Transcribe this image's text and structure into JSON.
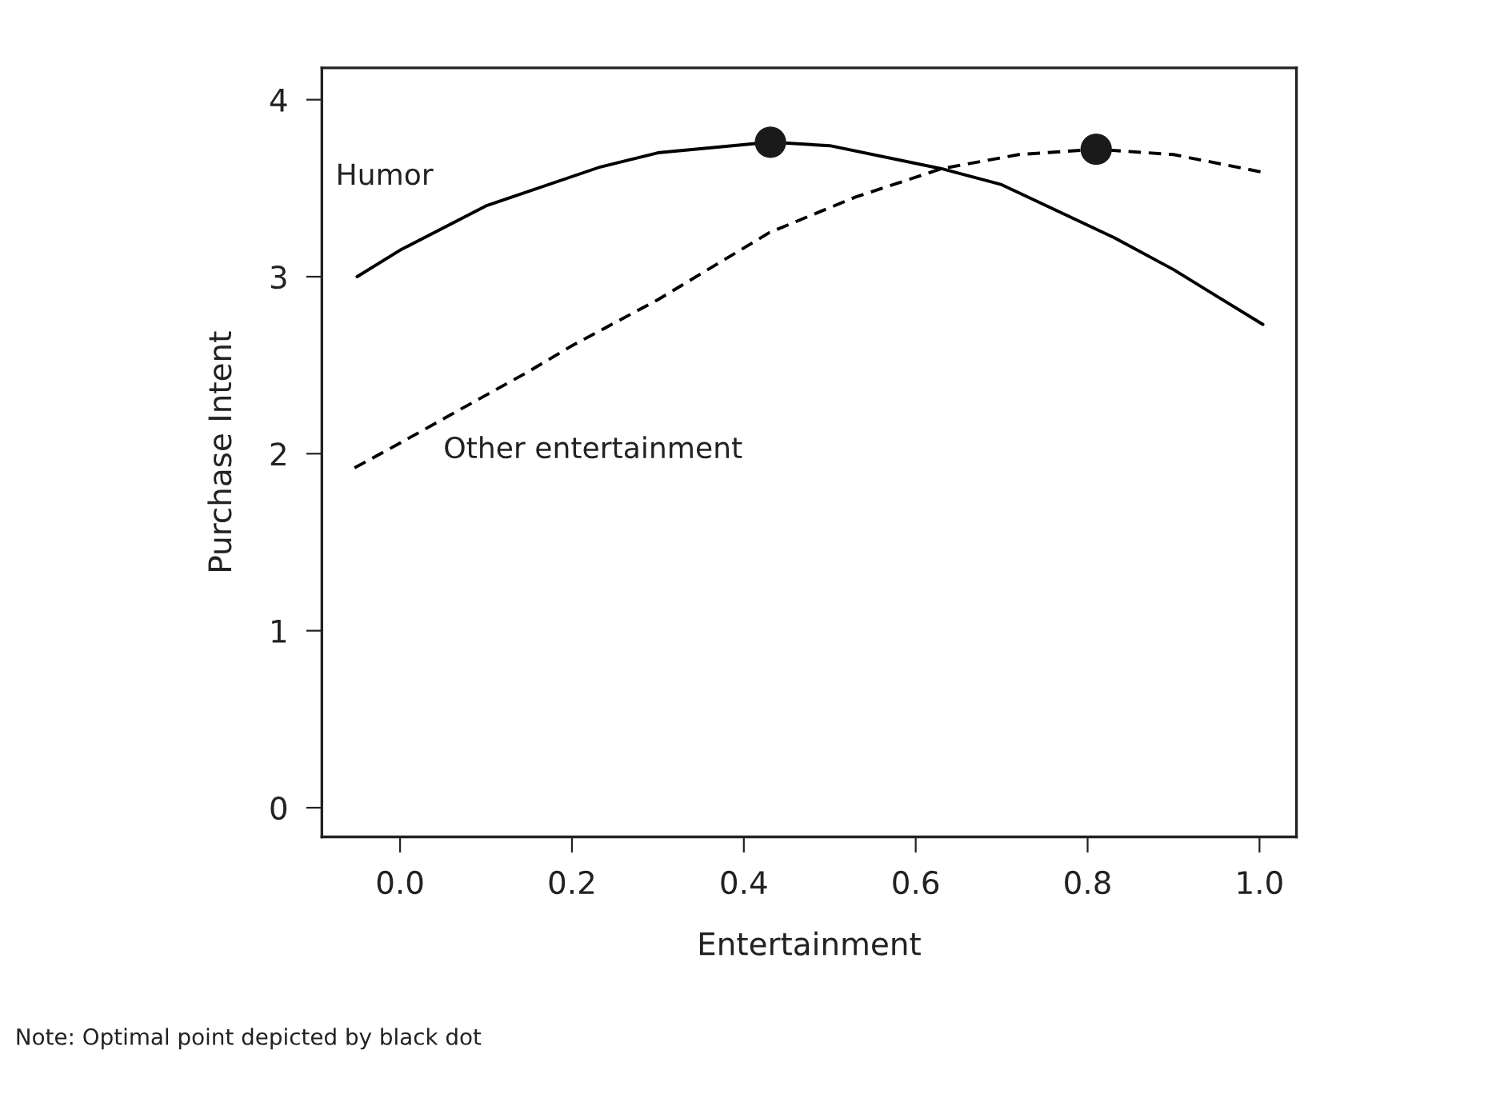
{
  "chart_data": {
    "type": "line",
    "xlabel": "Entertainment",
    "ylabel": "Purchase Intent",
    "xlim": [
      -0.091,
      1.043
    ],
    "ylim": [
      -0.165,
      4.18
    ],
    "xticks": [
      {
        "value": 0,
        "label": "0.0"
      },
      0.2,
      0.4,
      0.6,
      0.8,
      {
        "value": 1,
        "label": "1.0"
      }
    ],
    "yticks": [
      0,
      1,
      2,
      3,
      4
    ],
    "grid": false,
    "legend": false,
    "series": [
      {
        "name": "Humor",
        "color": "#000000",
        "line_style": "solid",
        "marker": "none",
        "x": [
          -0.05,
          0.0,
          0.1,
          0.233,
          0.3,
          0.431,
          0.5,
          0.63,
          0.7,
          0.831,
          0.9,
          1.004
        ],
        "values": [
          3.0,
          3.15,
          3.4,
          3.62,
          3.7,
          3.76,
          3.74,
          3.61,
          3.52,
          3.22,
          3.04,
          2.73
        ]
      },
      {
        "name": "Other entertainment",
        "color": "#000000",
        "line_style": "dashed",
        "marker": "none",
        "x": [
          -0.053,
          0.0,
          0.07,
          0.148,
          0.2,
          0.3,
          0.43,
          0.53,
          0.63,
          0.72,
          0.81,
          0.9,
          1.004
        ],
        "values": [
          1.92,
          2.06,
          2.25,
          2.46,
          2.61,
          2.87,
          3.25,
          3.45,
          3.61,
          3.69,
          3.72,
          3.69,
          3.59
        ]
      },
      {
        "type": "scatter",
        "color": "#1a1a1a",
        "marker": "circle",
        "x": [
          0.431,
          0.81
        ],
        "values": [
          3.76,
          3.72
        ]
      }
    ],
    "annotations": [
      "Note: Optimal point depicted by black dot"
    ]
  }
}
